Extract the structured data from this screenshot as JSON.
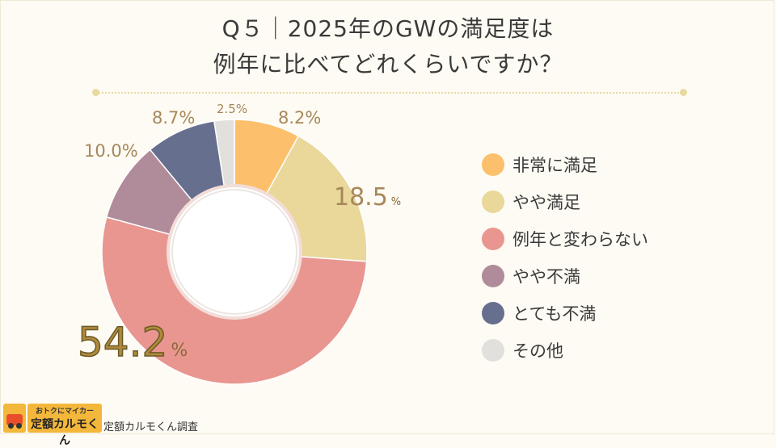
{
  "title_line1": "Q５｜2025年のGWの満足度は",
  "title_line2": "例年に比べてどれくらいですか？",
  "logo": {
    "small_text": "おトクにマイカー",
    "big_text": "定額カルモくん"
  },
  "source": "定額カルモくん調査",
  "chart_data": {
    "type": "pie",
    "donut": true,
    "categories": [
      "非常に満足",
      "やや満足",
      "例年と変わらない",
      "やや不満",
      "とても不満",
      "その他"
    ],
    "values": [
      8.2,
      18.5,
      54.2,
      10.0,
      8.7,
      2.5
    ],
    "labels": [
      "8.2%",
      "18.5",
      "54.2",
      "10.0%",
      "8.7%",
      "2.5%"
    ],
    "colors": [
      "#fcc06c",
      "#e9d89a",
      "#e99690",
      "#b08b99",
      "#676f8e",
      "#e2e0dd"
    ],
    "legend_position": "right"
  }
}
